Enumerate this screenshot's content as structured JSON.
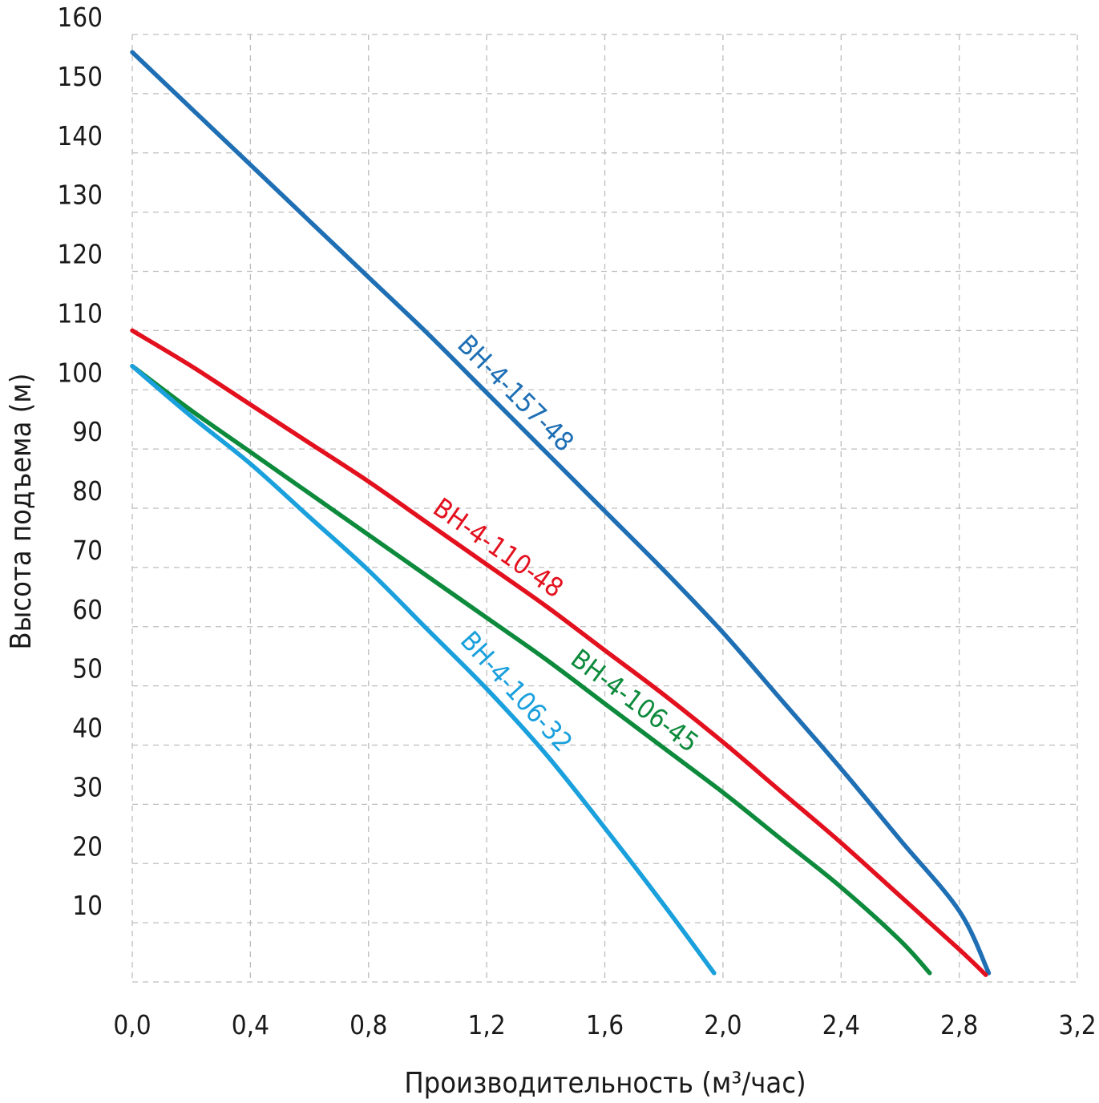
{
  "chart_data": {
    "type": "line",
    "title": "",
    "xlabel": "Производительность (м³/час)",
    "ylabel": "Высота подъема (м)",
    "xlim": [
      0,
      3.2
    ],
    "ylim": [
      0,
      160
    ],
    "grid": true,
    "x_ticks": [
      "0,0",
      "0,4",
      "0,8",
      "1,2",
      "1,6",
      "2,0",
      "2,4",
      "2,8",
      "3,2"
    ],
    "x_tick_values": [
      0,
      0.4,
      0.8,
      1.2,
      1.6,
      2.0,
      2.4,
      2.8,
      3.2
    ],
    "y_ticks": [
      "10",
      "20",
      "30",
      "40",
      "50",
      "60",
      "70",
      "80",
      "90",
      "100",
      "110",
      "120",
      "130",
      "140",
      "150",
      "160"
    ],
    "y_tick_values": [
      10,
      20,
      30,
      40,
      50,
      60,
      70,
      80,
      90,
      100,
      110,
      120,
      130,
      140,
      150,
      160
    ],
    "series": [
      {
        "name": "BH-4-157-48",
        "color": "#1f6fb4",
        "x": [
          0,
          0.2,
          0.4,
          0.6,
          0.8,
          1.0,
          1.2,
          1.4,
          1.6,
          1.8,
          2.0,
          2.2,
          2.4,
          2.6,
          2.8,
          2.9
        ],
        "y": [
          157,
          147.5,
          138,
          128.5,
          119,
          109.5,
          99.5,
          89.5,
          79.5,
          69.5,
          59,
          47.5,
          36,
          24,
          12,
          1.5
        ],
        "label_at": 1.25
      },
      {
        "name": "BH-4-110-48",
        "color": "#e3101e",
        "x": [
          0,
          0.2,
          0.4,
          0.6,
          0.8,
          1.0,
          1.2,
          1.4,
          1.6,
          1.8,
          2.0,
          2.2,
          2.4,
          2.6,
          2.8,
          2.89
        ],
        "y": [
          110,
          104,
          97.5,
          91,
          84.5,
          77.5,
          70.5,
          63.5,
          56,
          48.5,
          40.5,
          32,
          23.5,
          14.5,
          5.5,
          1.2
        ],
        "label_at": 1.2
      },
      {
        "name": "BH-4-106-45",
        "color": "#0d8a3c",
        "x": [
          0,
          0.2,
          0.4,
          0.6,
          0.8,
          1.0,
          1.2,
          1.4,
          1.6,
          1.8,
          2.0,
          2.2,
          2.4,
          2.6,
          2.7
        ],
        "y": [
          104,
          96.5,
          89.5,
          82.5,
          75.5,
          68.5,
          61.5,
          54.5,
          47,
          39.5,
          32,
          24,
          16,
          7,
          1.5
        ],
        "label_at": 1.66
      },
      {
        "name": "BH-4-106-32",
        "color": "#1aa0dc",
        "x": [
          0,
          0.2,
          0.4,
          0.6,
          0.8,
          1.0,
          1.2,
          1.4,
          1.6,
          1.8,
          1.97
        ],
        "y": [
          104,
          95.5,
          87.5,
          78.5,
          69.5,
          59.5,
          49.5,
          38.5,
          26,
          13,
          1.5
        ],
        "label_at": 1.25
      }
    ]
  }
}
